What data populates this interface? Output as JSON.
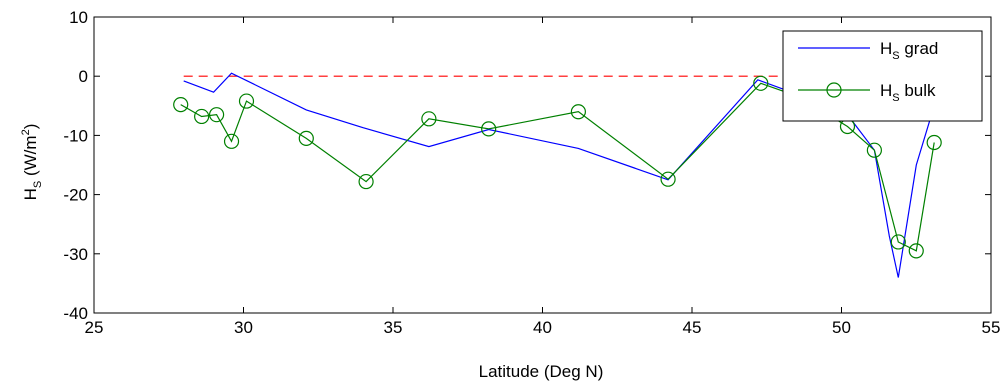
{
  "chart_data": {
    "type": "line",
    "xlabel": "Latitude (Deg N)",
    "ylabel": {
      "main": "H",
      "sub": "S",
      "rest": " (W/m",
      "sup": "2",
      "close": ")"
    },
    "xlim": [
      25,
      55
    ],
    "ylim": [
      -40,
      10
    ],
    "xticks": [
      "25",
      "30",
      "35",
      "40",
      "45",
      "50",
      "55"
    ],
    "yticks": [
      "10",
      "0",
      "-10",
      "-20",
      "-30",
      "-40"
    ],
    "grid": false,
    "legend_position": "top-right",
    "reference_line": {
      "y": 0,
      "x_range": [
        28,
        48
      ],
      "color": "#ff0000",
      "style": "dashed"
    },
    "series": [
      {
        "legend_main": "H",
        "legend_sub": "S",
        "legend_rest": " grad",
        "color": "#0000ff",
        "marker": "none",
        "x": [
          28.0,
          29.0,
          29.6,
          32.1,
          34.0,
          36.2,
          38.2,
          41.2,
          44.2,
          47.2,
          48.5,
          50.2,
          51.1,
          51.6,
          51.9,
          52.5,
          53.1
        ],
        "y": [
          -0.8,
          -2.7,
          0.5,
          -5.7,
          -8.7,
          -11.9,
          -9.0,
          -12.2,
          -17.5,
          -0.6,
          -3.0,
          -6.5,
          -12.5,
          -27.0,
          -34.0,
          -15.0,
          -5.0
        ]
      },
      {
        "legend_main": "H",
        "legend_sub": "S",
        "legend_rest": " bulk",
        "color": "#008000",
        "marker": "circle",
        "x": [
          27.9,
          28.6,
          29.1,
          29.6,
          30.1,
          32.1,
          34.1,
          36.2,
          38.2,
          41.2,
          44.2,
          47.3,
          48.6,
          50.2,
          51.1,
          51.9,
          52.5,
          53.1
        ],
        "y": [
          -4.8,
          -6.8,
          -6.5,
          -11.0,
          -4.2,
          -10.5,
          -17.8,
          -7.2,
          -8.9,
          -6.0,
          -17.4,
          -1.2,
          -3.5,
          -8.5,
          -12.5,
          -28.0,
          -29.5,
          -11.2
        ]
      }
    ]
  }
}
